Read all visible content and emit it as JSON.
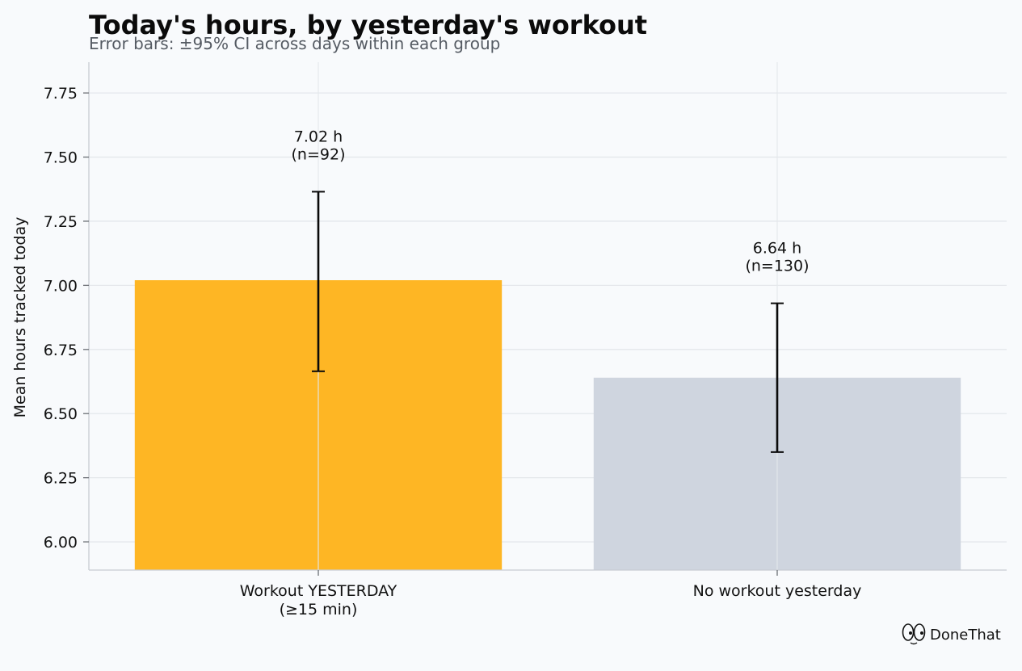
{
  "chart_data": {
    "type": "bar",
    "title": "Today's hours, by yesterday's workout",
    "subtitle": "Error bars: ±95% CI across days within each group",
    "xlabel": "",
    "ylabel": "Mean hours tracked today",
    "ylim": [
      5.89,
      7.87
    ],
    "yticks": [
      "6.00",
      "6.25",
      "6.50",
      "6.75",
      "7.00",
      "7.25",
      "7.50",
      "7.75"
    ],
    "grid": true,
    "categories": [
      [
        "Workout YESTERDAY",
        "(≥15 min)"
      ],
      [
        "No workout yesterday"
      ]
    ],
    "values": [
      7.02,
      6.64
    ],
    "ci_low": [
      6.665,
      6.35
    ],
    "ci_high": [
      7.365,
      6.93
    ],
    "data_labels": [
      [
        "7.02 h",
        "(n=92)"
      ],
      [
        "6.64 h",
        "(n=130)"
      ]
    ],
    "colors": [
      "#feb624",
      "#cfd5df"
    ]
  },
  "brand": {
    "name": "DoneThat",
    "icon": "eyes-logo-icon"
  }
}
